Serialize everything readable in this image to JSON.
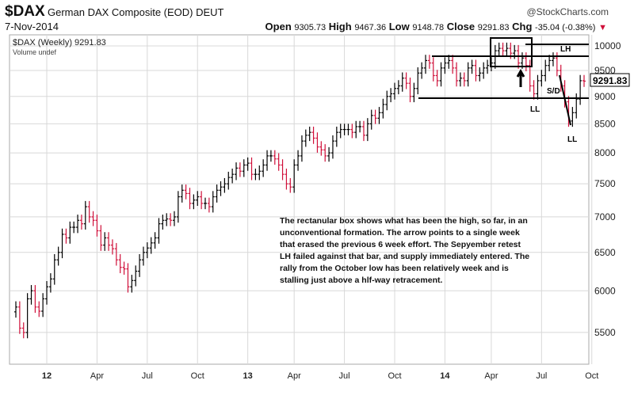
{
  "header": {
    "symbol": "$DAX",
    "name": "German DAX Composite (EOD) DEUT",
    "date": "7-Nov-2014",
    "source": "@StockCharts.com",
    "open_label": "Open",
    "open": "9305.73",
    "high_label": "High",
    "high": "9467.36",
    "low_label": "Low",
    "low": "9148.78",
    "close_label": "Close",
    "close": "9291.83",
    "chg_label": "Chg",
    "chg": "-35.04 (-0.38%)"
  },
  "legend": {
    "series": "$DAX (Weekly) 9291.83",
    "volume": "Volume undef"
  },
  "price_tag": "9291.83",
  "annotations": {
    "lh": "LH",
    "ll1": "LL",
    "ll2": "LL",
    "sd": "S/D",
    "note": "The rectanular box shows what has been the high, so far, in an unconventional formation.  The arrow points to a single week that erased the previous 6 week effort.  The Sepyember retest LH failed against that bar, and supply immediately entered.  The rally from the October low has been relatively week and is stalling just above a hlf-way retracement."
  },
  "colors": {
    "up": "#000000",
    "down": "#d0103a",
    "grid": "#d8d8d8"
  },
  "chart_data": {
    "type": "ohlc",
    "scale": "log",
    "ylim": [
      5300,
      10200
    ],
    "yticks": [
      5500,
      6000,
      6500,
      7000,
      7500,
      8000,
      8500,
      9000,
      9500,
      10000
    ],
    "xticks": [
      {
        "label": "12",
        "week": 8
      },
      {
        "label": "Apr",
        "week": 21
      },
      {
        "label": "Jul",
        "week": 34
      },
      {
        "label": "Oct",
        "week": 47
      },
      {
        "label": "13",
        "week": 60
      },
      {
        "label": "Apr",
        "week": 72
      },
      {
        "label": "Jul",
        "week": 85
      },
      {
        "label": "Oct",
        "week": 98
      },
      {
        "label": "14",
        "week": 111
      },
      {
        "label": "Apr",
        "week": 123
      },
      {
        "label": "Jul",
        "week": 136
      },
      {
        "label": "Oct",
        "week": 149
      }
    ],
    "weekly_close": [
      5800,
      5550,
      5500,
      5900,
      6000,
      5800,
      5750,
      5900,
      6050,
      6150,
      6400,
      6500,
      6750,
      6700,
      6850,
      6850,
      6950,
      6900,
      7150,
      7000,
      6950,
      6800,
      6600,
      6700,
      6600,
      6550,
      6400,
      6300,
      6280,
      6050,
      6130,
      6250,
      6400,
      6500,
      6560,
      6630,
      6700,
      6900,
      6950,
      6970,
      6950,
      7000,
      7300,
      7400,
      7350,
      7200,
      7250,
      7300,
      7200,
      7200,
      7150,
      7300,
      7400,
      7450,
      7500,
      7600,
      7650,
      7750,
      7700,
      7800,
      7830,
      7650,
      7650,
      7700,
      7800,
      7950,
      7950,
      7900,
      7800,
      7650,
      7500,
      7450,
      7800,
      7950,
      8200,
      8300,
      8350,
      8250,
      8100,
      8050,
      7950,
      8000,
      8200,
      8350,
      8400,
      8400,
      8400,
      8350,
      8450,
      8450,
      8300,
      8500,
      8650,
      8600,
      8700,
      8850,
      9000,
      9050,
      9150,
      9200,
      9350,
      9250,
      9000,
      9150,
      9450,
      9550,
      9700,
      9650,
      9400,
      9300,
      9550,
      9650,
      9700,
      9550,
      9300,
      9350,
      9300,
      9550,
      9600,
      9400,
      9450,
      9550,
      9600,
      9650,
      9900,
      9950,
      9900,
      9950,
      9850,
      9900,
      9650,
      9750,
      9600,
      9200,
      9050,
      9300,
      9400,
      9600,
      9700,
      9750,
      9500,
      9200,
      8900,
      8550,
      8700,
      8950,
      9300,
      9291.83
    ]
  }
}
